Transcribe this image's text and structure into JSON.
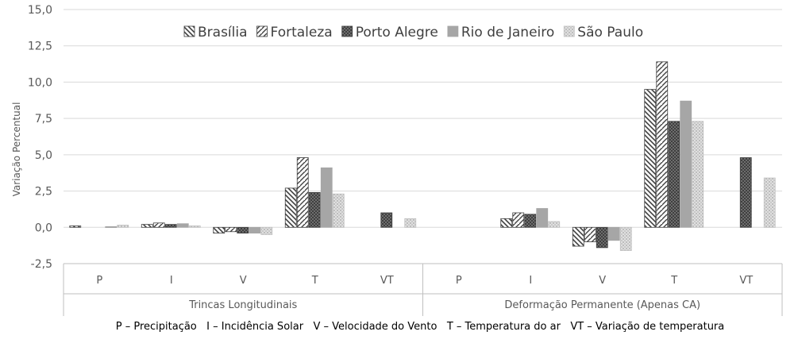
{
  "chart_data": {
    "type": "bar",
    "ylabel": "Variação Percentual",
    "ylim": [
      -2.5,
      15.0
    ],
    "yticks": [
      -2.5,
      0.0,
      2.5,
      5.0,
      7.5,
      10.0,
      12.5,
      15.0
    ],
    "ytick_labels": [
      "-2,5",
      "0,0",
      "2,5",
      "5,0",
      "7,5",
      "10,0",
      "12,5",
      "15,0"
    ],
    "grid": true,
    "legend_position": "top",
    "groups": [
      {
        "label": "Trincas Longitudinais",
        "categories": [
          "P",
          "I",
          "V",
          "T",
          "VT"
        ]
      },
      {
        "label": "Deformação Permanente (Apenas CA)",
        "categories": [
          "P",
          "I",
          "V",
          "T",
          "VT"
        ]
      }
    ],
    "series": [
      {
        "name": "Brasília",
        "pattern": "back",
        "values": [
          0.1,
          0.2,
          -0.4,
          2.7,
          null,
          null,
          0.6,
          -1.3,
          9.5,
          null
        ]
      },
      {
        "name": "Fortaleza",
        "pattern": "fwd",
        "values": [
          null,
          0.3,
          -0.3,
          4.8,
          null,
          null,
          1.0,
          -1.0,
          11.4,
          null
        ]
      },
      {
        "name": "Porto Alegre",
        "pattern": "dense",
        "values": [
          null,
          0.2,
          -0.4,
          2.4,
          1.0,
          null,
          0.9,
          -1.4,
          7.3,
          4.8
        ]
      },
      {
        "name": "Rio de Janeiro",
        "pattern": "solid",
        "values": [
          0.05,
          0.25,
          -0.4,
          4.1,
          null,
          null,
          1.3,
          -0.9,
          8.7,
          null
        ]
      },
      {
        "name": "São Paulo",
        "pattern": "light",
        "values": [
          0.15,
          0.1,
          -0.5,
          2.3,
          0.6,
          null,
          0.4,
          -1.6,
          7.3,
          3.4
        ]
      }
    ],
    "footnote": "P – Precipitação   I – Incidência Solar   V – Velocidade do Vento   T – Temperatura do ar   VT – Variação de temperatura"
  }
}
